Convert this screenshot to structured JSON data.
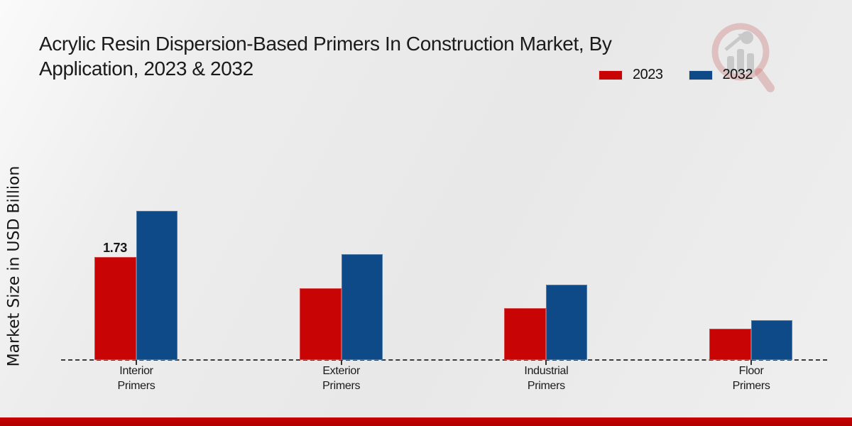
{
  "title": {
    "full": "Acrylic Resin Dispersion-Based Primers In Construction Market, By Application, 2023 & 2032",
    "lines": [
      "Acrylic Resin Dispersion-Based Primers In Construction Market, By",
      "Application, 2023 & 2032"
    ]
  },
  "colors": {
    "bar_2023": "#c80404",
    "bar_2032": "#0d4a87",
    "footer_accent": "#c00000",
    "baseline": "#3c3c3c",
    "background": "#ebebeb"
  },
  "watermark": {
    "icon": "magnifier-bar-chart-logo"
  },
  "chart_data": {
    "type": "bar",
    "title": "Acrylic Resin Dispersion-Based Primers In Construction Market, By Application, 2023 & 2032",
    "categories": [
      "Interior Primers",
      "Exterior Primers",
      "Industrial Primers",
      "Floor Primers"
    ],
    "series": [
      {
        "name": "2023",
        "color": "#c80404",
        "values": [
          1.73,
          1.21,
          0.87,
          0.53
        ]
      },
      {
        "name": "2032",
        "color": "#0d4a87",
        "values": [
          2.51,
          1.78,
          1.26,
          0.67
        ]
      }
    ],
    "xlabel": "",
    "ylabel": "Market Size in USD Billion",
    "ylim": [
      0,
      2.6
    ],
    "grid": false,
    "y_axis_ticks_visible": false,
    "baseline_style": "dashed",
    "legend_position": "top-right",
    "annotations": [
      {
        "series_index": 0,
        "category_index": 0,
        "text": "1.73"
      }
    ]
  }
}
